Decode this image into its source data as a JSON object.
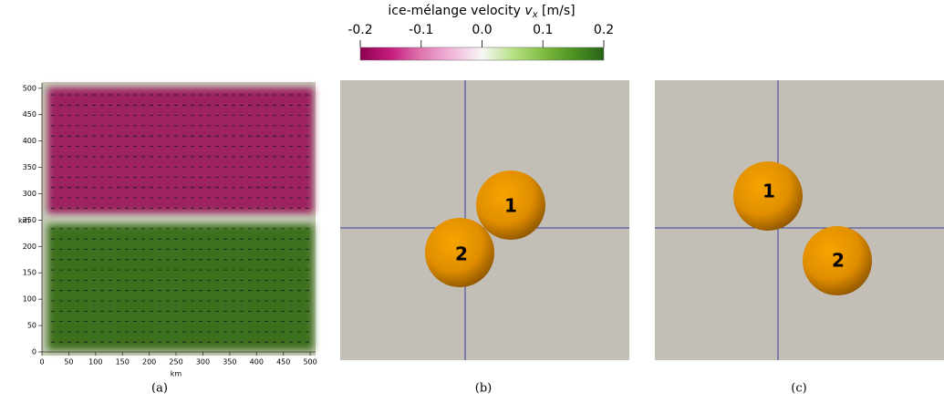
{
  "colorbar": {
    "title": "ice-mélange velocity",
    "title_var": "v",
    "title_sub": "x",
    "title_unit": "[m/s]",
    "lim": [
      -0.2,
      0.2
    ],
    "ticks": [
      -0.2,
      -0.1,
      {
        "value": 0,
        "label": "0.0"
      },
      0.1,
      0.2
    ]
  },
  "panel_a": {
    "caption": "(a)",
    "xlabel": "km",
    "ylabel": "km",
    "xlim": [
      0,
      510
    ],
    "ylim": [
      0,
      510
    ],
    "xticks": [
      0,
      50,
      100,
      150,
      200,
      250,
      300,
      350,
      400,
      450,
      500
    ],
    "yticks": [
      0,
      50,
      100,
      150,
      200,
      250,
      300,
      350,
      400,
      450,
      500
    ]
  },
  "panel_b": {
    "caption": "(b)",
    "spheres": [
      "1",
      "2"
    ]
  },
  "panel_c": {
    "caption": "(c)",
    "spheres": [
      "1",
      "2"
    ]
  }
}
